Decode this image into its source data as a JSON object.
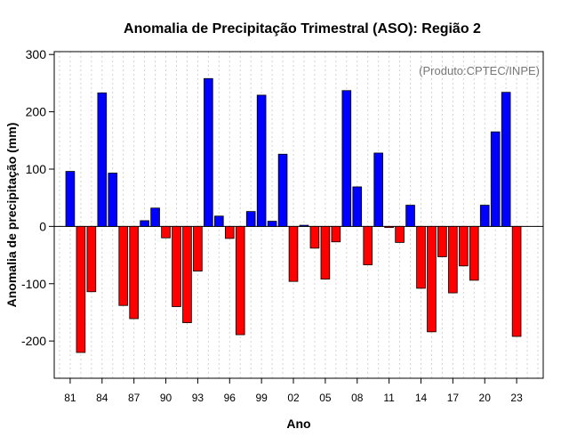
{
  "chart_data": {
    "type": "bar",
    "title": "Anomalia de Precipitação Trimestral (ASO): Região 2",
    "xlabel": "Ano",
    "ylabel": "Anomalia de precipitação (mm)",
    "credit": "(Produto:CPTEC/INPE)",
    "ylim": [
      -265,
      305
    ],
    "yticks": [
      -200,
      -100,
      0,
      100,
      200,
      300
    ],
    "xlim": [
      1979.5,
      2025.5
    ],
    "xtick_years": [
      1981,
      1984,
      1987,
      1990,
      1993,
      1996,
      1999,
      2002,
      2005,
      2008,
      2011,
      2014,
      2017,
      2020,
      2023
    ],
    "xtick_labels": [
      "81",
      "84",
      "87",
      "90",
      "93",
      "96",
      "99",
      "02",
      "05",
      "08",
      "11",
      "14",
      "17",
      "20",
      "23"
    ],
    "positive_color": "#0000ff",
    "negative_color": "#ff0000",
    "categories": [
      1981,
      1982,
      1983,
      1984,
      1985,
      1986,
      1987,
      1988,
      1989,
      1990,
      1991,
      1992,
      1993,
      1994,
      1995,
      1996,
      1997,
      1998,
      1999,
      2000,
      2001,
      2002,
      2003,
      2004,
      2005,
      2006,
      2007,
      2008,
      2009,
      2010,
      2011,
      2012,
      2013,
      2014,
      2015,
      2016,
      2017,
      2018,
      2019,
      2020,
      2021,
      2022,
      2023
    ],
    "values": [
      96,
      -220,
      -114,
      233,
      93,
      -138,
      -161,
      10,
      32,
      -20,
      -140,
      -168,
      -78,
      258,
      18,
      -21,
      -189,
      26,
      229,
      9,
      126,
      -96,
      2,
      -38,
      -92,
      -27,
      237,
      69,
      -67,
      128,
      -2,
      -28,
      37,
      -108,
      -184,
      -53,
      -116,
      -69,
      -94,
      37,
      165,
      234,
      -192
    ]
  }
}
